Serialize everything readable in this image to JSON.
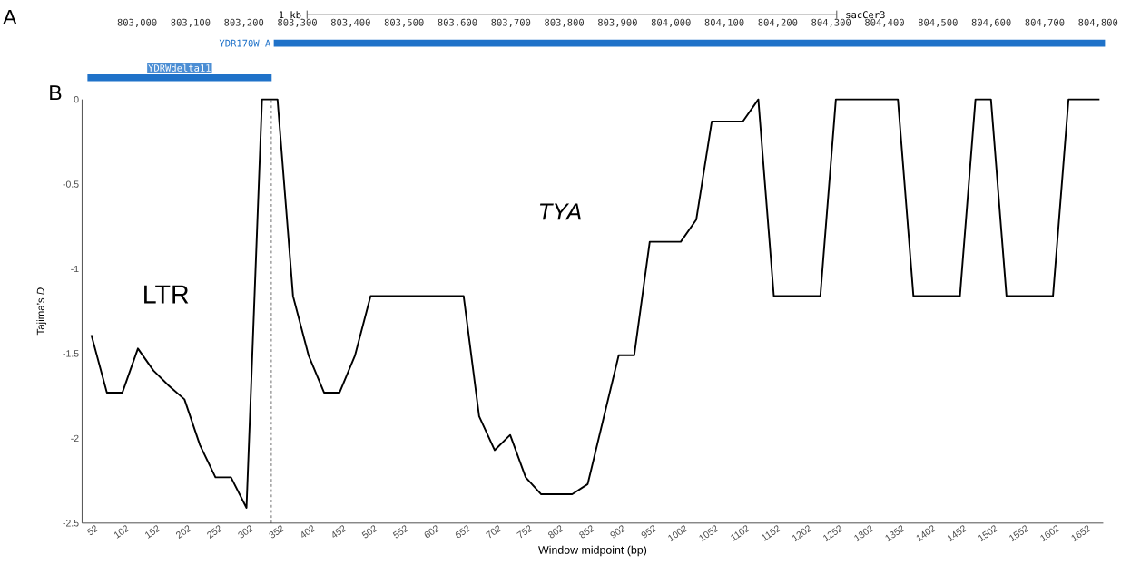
{
  "chart_data": [
    {
      "type": "bar",
      "title": "A",
      "orientation": "horizontal",
      "categories": [
        "YDR170W-A",
        "YDRWdelta11"
      ],
      "base": [
        803256,
        802907
      ],
      "values": [
        1557,
        345
      ],
      "colors": [
        "#1f72c9",
        "#1f72c9"
      ],
      "xlim": [
        802905,
        804813
      ],
      "xticks": [
        {
          "value": 803000,
          "label": "803,000"
        },
        {
          "value": 803100,
          "label": "803,100"
        },
        {
          "value": 803200,
          "label": "803,200"
        },
        {
          "value": 803300,
          "label": "803,300"
        },
        {
          "value": 803400,
          "label": "803,400"
        },
        {
          "value": 803500,
          "label": "803,500"
        },
        {
          "value": 803600,
          "label": "803,600"
        },
        {
          "value": 803700,
          "label": "803,700"
        },
        {
          "value": 803800,
          "label": "803,800"
        },
        {
          "value": 803900,
          "label": "803,900"
        },
        {
          "value": 804000,
          "label": "804,000"
        },
        {
          "value": 804100,
          "label": "804,100"
        },
        {
          "value": 804200,
          "label": "804,200"
        },
        {
          "value": 804300,
          "label": "804,300"
        },
        {
          "value": 804400,
          "label": "804,400"
        },
        {
          "value": 804500,
          "label": "804,500"
        },
        {
          "value": 804600,
          "label": "804,600"
        },
        {
          "value": 804700,
          "label": "804,700"
        },
        {
          "value": 804800,
          "label": "804,800"
        }
      ],
      "annotations": [
        "1 kb",
        "sacCer3"
      ]
    },
    {
      "type": "line",
      "title": "B",
      "xlabel": "Window midpoint (bp)",
      "ylabel": "Tajima’s *D*",
      "x": [
        52,
        77,
        102,
        127,
        152,
        177,
        202,
        227,
        252,
        277,
        302,
        327,
        352,
        377,
        402,
        427,
        452,
        477,
        502,
        527,
        552,
        577,
        602,
        627,
        652,
        677,
        702,
        727,
        752,
        777,
        802,
        827,
        852,
        877,
        902,
        927,
        952,
        977,
        1002,
        1027,
        1052,
        1077,
        1102,
        1127,
        1152,
        1177,
        1202,
        1227,
        1252,
        1277,
        1302,
        1327,
        1352,
        1377,
        1402,
        1427,
        1452,
        1477,
        1502,
        1527,
        1552,
        1577,
        1602,
        1627,
        1652,
        1677
      ],
      "series": [
        {
          "color": "#000000",
          "values": [
            -1.39,
            -1.73,
            -1.73,
            -1.47,
            -1.6,
            -1.69,
            -1.77,
            -2.04,
            -2.23,
            -2.23,
            -2.41,
            0,
            0,
            -1.16,
            -1.51,
            -1.73,
            -1.73,
            -1.51,
            -1.16,
            -1.16,
            -1.16,
            -1.16,
            -1.16,
            -1.16,
            -1.16,
            -1.87,
            -2.07,
            -1.98,
            -2.23,
            -2.33,
            -2.33,
            -2.33,
            -2.27,
            -1.89,
            -1.51,
            -1.51,
            -0.84,
            -0.84,
            -0.84,
            -0.71,
            -0.13,
            -0.13,
            -0.13,
            0,
            -1.16,
            -1.16,
            -1.16,
            -1.16,
            0,
            0,
            0,
            0,
            0,
            -1.16,
            -1.16,
            -1.16,
            -1.16,
            0,
            0,
            -1.16,
            -1.16,
            -1.16,
            -1.16,
            0,
            0,
            0
          ]
        }
      ],
      "xlim": [
        37,
        1683
      ],
      "xticks": [
        52,
        102,
        152,
        202,
        252,
        302,
        352,
        402,
        452,
        502,
        552,
        602,
        652,
        702,
        752,
        802,
        852,
        902,
        952,
        1002,
        1052,
        1102,
        1152,
        1202,
        1252,
        1302,
        1352,
        1402,
        1452,
        1502,
        1552,
        1602,
        1652
      ],
      "ylim": [
        -2.5,
        0
      ],
      "yticks": [
        0,
        -0.5,
        -1,
        -1.5,
        -2,
        -2.5
      ],
      "ref_lines": [
        {
          "axis": "x",
          "value": 342,
          "line_style": "dashed",
          "color": "#000000"
        }
      ],
      "annotations": [
        "LTR",
        "TYA"
      ]
    }
  ]
}
